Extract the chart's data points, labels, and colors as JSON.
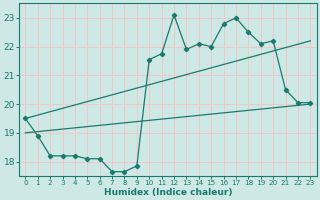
{
  "xlabel": "Humidex (Indice chaleur)",
  "bg_color": "#cde8e5",
  "grid_color": "#f0c8c8",
  "line_color": "#1a7a6e",
  "xlim": [
    -0.5,
    23.5
  ],
  "ylim": [
    17.5,
    23.5
  ],
  "yticks": [
    18,
    19,
    20,
    21,
    22,
    23
  ],
  "xticks": [
    0,
    1,
    2,
    3,
    4,
    5,
    6,
    7,
    8,
    9,
    10,
    11,
    12,
    13,
    14,
    15,
    16,
    17,
    18,
    19,
    20,
    21,
    22,
    23
  ],
  "main_line": [
    [
      0,
      19.5
    ],
    [
      1,
      18.9
    ],
    [
      2,
      18.2
    ],
    [
      3,
      18.2
    ],
    [
      4,
      18.2
    ],
    [
      5,
      18.1
    ],
    [
      6,
      18.1
    ],
    [
      7,
      17.65
    ],
    [
      8,
      17.65
    ],
    [
      9,
      17.85
    ],
    [
      10,
      21.55
    ],
    [
      11,
      21.75
    ],
    [
      12,
      23.1
    ],
    [
      13,
      21.9
    ],
    [
      14,
      22.1
    ],
    [
      15,
      22.0
    ],
    [
      16,
      22.8
    ],
    [
      17,
      23.0
    ],
    [
      18,
      22.5
    ],
    [
      19,
      22.1
    ],
    [
      20,
      22.2
    ],
    [
      21,
      20.5
    ],
    [
      22,
      20.05
    ],
    [
      23,
      20.05
    ]
  ],
  "line_upper": [
    [
      0,
      19.5
    ],
    [
      23,
      22.2
    ]
  ],
  "line_lower": [
    [
      0,
      19.0
    ],
    [
      23,
      20.0
    ]
  ]
}
